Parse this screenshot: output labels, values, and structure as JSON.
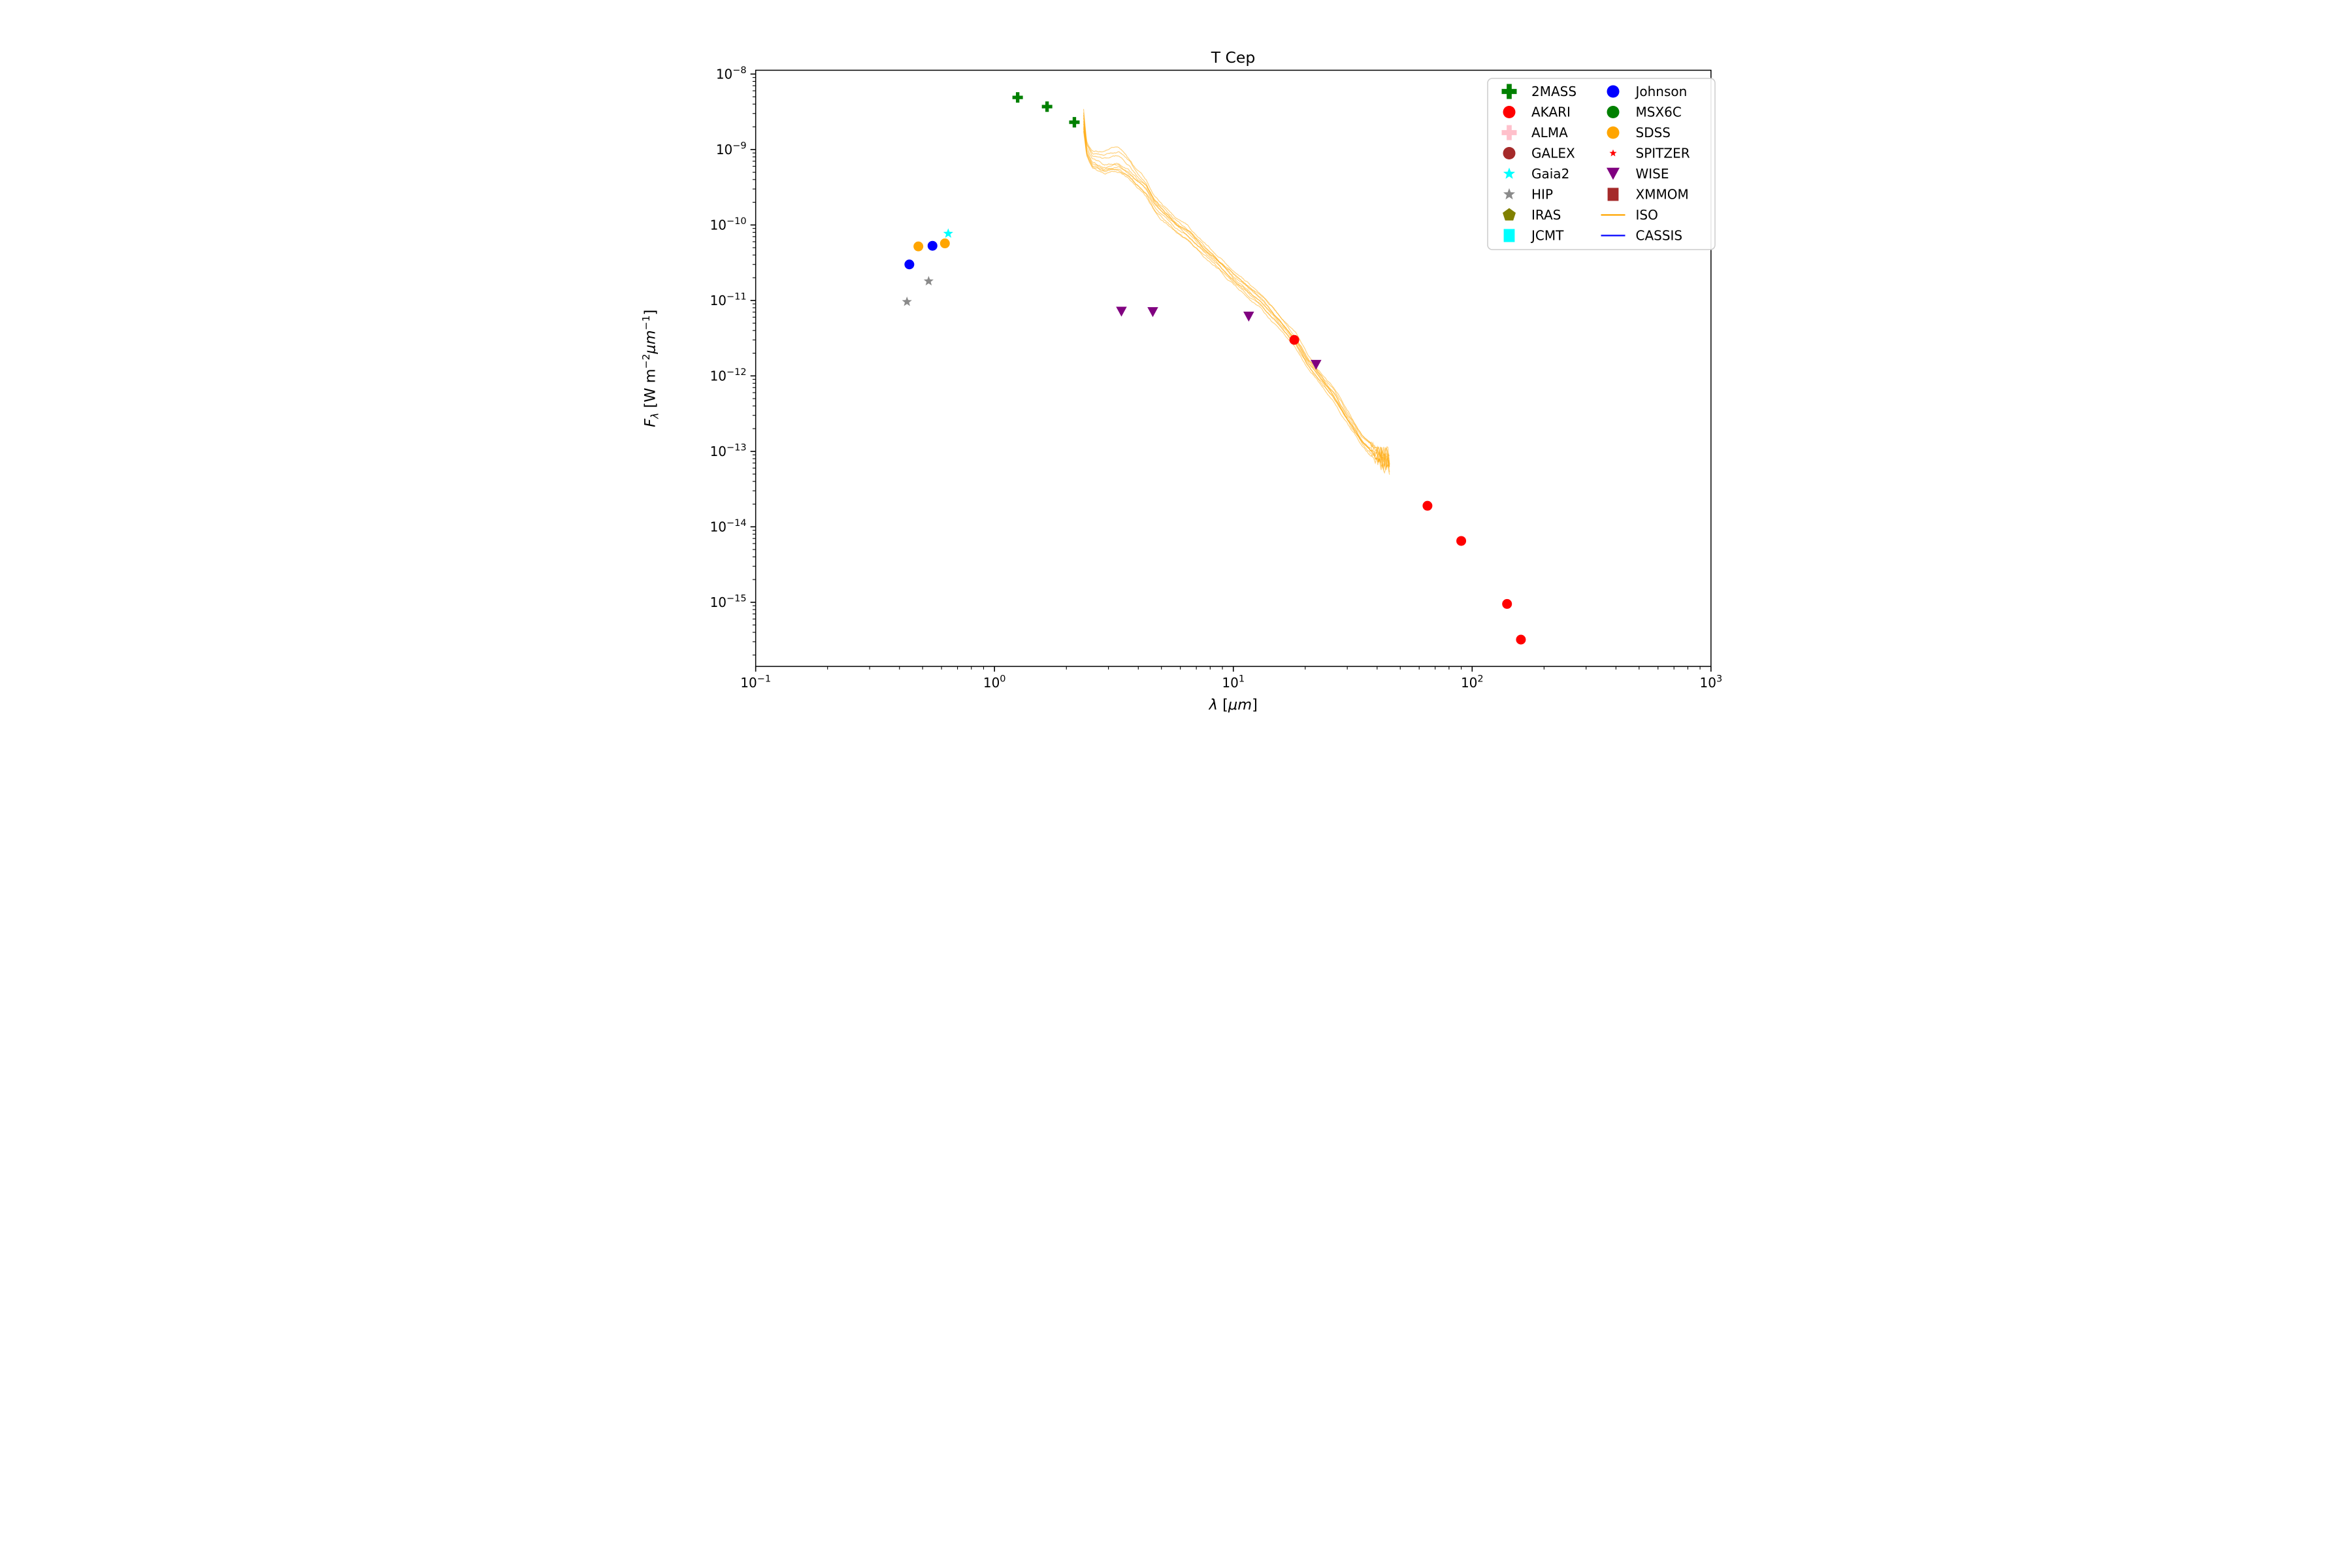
{
  "title": "T Cep",
  "axes": {
    "xlabel": {
      "symbol": "λ",
      "bracket_open": " [",
      "unit": "μm",
      "bracket_close": "]"
    },
    "ylabel": {
      "symbol": "F",
      "symbol_sub": "λ",
      "bracket_open": " [W m",
      "exp1": "−2",
      "unit2": "μm",
      "exp2": "−1",
      "bracket_close": "]"
    },
    "x_scale": "log",
    "y_scale": "log",
    "xlim": [
      0.1,
      1000
    ],
    "ylim": [
      1.4e-16,
      1.12e-08
    ],
    "xtick_exponents": [
      -1,
      0,
      1,
      2,
      3
    ],
    "ytick_exponents": [
      -8,
      -9,
      -10,
      -11,
      -12,
      -13,
      -14,
      -15
    ],
    "grid": false
  },
  "legend": {
    "position": "upper right",
    "columns": 2,
    "entries": [
      {
        "label": "2MASS",
        "marker": "plus",
        "color": "#008000",
        "small": false
      },
      {
        "label": "AKARI",
        "marker": "circle",
        "color": "#ff0000",
        "small": false
      },
      {
        "label": "ALMA",
        "marker": "plus",
        "color": "#ffc0cb",
        "small": false
      },
      {
        "label": "GALEX",
        "marker": "circle",
        "color": "#a52a2a",
        "small": false
      },
      {
        "label": "Gaia2",
        "marker": "star",
        "color": "#00ffff",
        "small": false
      },
      {
        "label": "HIP",
        "marker": "star",
        "color": "#8a8a8a",
        "small": false
      },
      {
        "label": "IRAS",
        "marker": "pentagon",
        "color": "#808000",
        "small": false
      },
      {
        "label": "JCMT",
        "marker": "square",
        "color": "#00ffff",
        "small": false
      },
      {
        "label": "Johnson",
        "marker": "circle",
        "color": "#0000ff",
        "small": false
      },
      {
        "label": "MSX6C",
        "marker": "circle",
        "color": "#008000",
        "small": false
      },
      {
        "label": "SDSS",
        "marker": "circle",
        "color": "#ffa500",
        "small": false
      },
      {
        "label": "SPITZER",
        "marker": "star",
        "color": "#ff0000",
        "small": true
      },
      {
        "label": "WISE",
        "marker": "triangle-down",
        "color": "#800080",
        "small": false
      },
      {
        "label": "XMMOM",
        "marker": "square",
        "color": "#a52a2a",
        "small": false
      },
      {
        "label": "ISO",
        "marker": "line",
        "color": "#ffa500",
        "small": false
      },
      {
        "label": "CASSIS",
        "marker": "line",
        "color": "#0000ff",
        "small": false
      }
    ]
  },
  "chart_data": {
    "type": "scatter",
    "title": "T Cep",
    "xlabel": "lambda [micrometer]",
    "ylabel": "F_lambda [W m^-2 micrometer^-1]",
    "x_units": "micrometer",
    "y_units": "W m^-2 um^-1",
    "series": [
      {
        "name": "2MASS",
        "marker": "plus",
        "color": "#008000",
        "points": [
          [
            1.25,
            4.9e-09
          ],
          [
            1.66,
            3.7e-09
          ],
          [
            2.16,
            2.3e-09
          ]
        ]
      },
      {
        "name": "AKARI",
        "marker": "circle",
        "color": "#ff0000",
        "points": [
          [
            18,
            3e-12
          ],
          [
            65,
            1.9e-14
          ],
          [
            90,
            6.5e-15
          ],
          [
            140,
            9.5e-16
          ],
          [
            160,
            3.2e-16
          ]
        ]
      },
      {
        "name": "ALMA",
        "marker": "plus",
        "color": "#ffc0cb",
        "points": []
      },
      {
        "name": "GALEX",
        "marker": "circle",
        "color": "#a52a2a",
        "points": []
      },
      {
        "name": "Gaia2",
        "marker": "star",
        "color": "#00ffff",
        "points": [
          [
            0.64,
            7.7e-11
          ]
        ]
      },
      {
        "name": "HIP",
        "marker": "star",
        "color": "#8a8a8a",
        "points": [
          [
            0.43,
            9.6e-12
          ],
          [
            0.53,
            1.8e-11
          ]
        ]
      },
      {
        "name": "IRAS",
        "marker": "pentagon",
        "color": "#808000",
        "points": []
      },
      {
        "name": "JCMT",
        "marker": "square",
        "color": "#00ffff",
        "points": []
      },
      {
        "name": "Johnson",
        "marker": "circle",
        "color": "#0000ff",
        "points": [
          [
            0.44,
            3e-11
          ],
          [
            0.55,
            5.3e-11
          ]
        ]
      },
      {
        "name": "MSX6C",
        "marker": "circle",
        "color": "#008000",
        "points": []
      },
      {
        "name": "SDSS",
        "marker": "circle",
        "color": "#ffa500",
        "points": [
          [
            0.48,
            5.2e-11
          ],
          [
            0.62,
            5.7e-11
          ]
        ]
      },
      {
        "name": "SPITZER",
        "marker": "star",
        "color": "#ff0000",
        "points": []
      },
      {
        "name": "WISE",
        "marker": "triangle-down",
        "color": "#800080",
        "points": [
          [
            3.4,
            7.1e-12
          ],
          [
            4.6,
            7e-12
          ],
          [
            11.6,
            6.1e-12
          ],
          [
            22.2,
            1.4e-12
          ]
        ]
      },
      {
        "name": "XMMOM",
        "marker": "square",
        "color": "#a52a2a",
        "points": []
      },
      {
        "name": "ISO",
        "marker": "line",
        "color": "#ffa500",
        "kind": "spectrum",
        "n_traces": 9,
        "opacity": 0.5,
        "points": [
          [
            2.36,
            1.5e-09
          ],
          [
            2.43,
            1e-09
          ],
          [
            2.57,
            6.9e-10
          ],
          [
            2.88,
            6e-10
          ],
          [
            3.31,
            6.3e-10
          ],
          [
            3.63,
            5.2e-10
          ],
          [
            3.98,
            3.8e-10
          ],
          [
            4.32,
            3e-10
          ],
          [
            4.68,
            1.9e-10
          ],
          [
            5.13,
            1.4e-10
          ],
          [
            5.75,
            1e-10
          ],
          [
            6.46,
            7.6e-11
          ],
          [
            7.5,
            4.7e-11
          ],
          [
            8.51,
            3.3e-11
          ],
          [
            10.0,
            2e-11
          ],
          [
            11.5,
            1.4e-11
          ],
          [
            13.2,
            9.5e-12
          ],
          [
            15.1,
            6e-12
          ],
          [
            18.2,
            3e-12
          ],
          [
            20.4,
            1.6e-12
          ],
          [
            22.9,
            1e-12
          ],
          [
            26.3,
            5.8e-13
          ],
          [
            30.2,
            2.8e-13
          ],
          [
            34.7,
            1.4e-13
          ],
          [
            39.8,
            8.9e-14
          ],
          [
            45.2,
            7.1e-14
          ]
        ]
      },
      {
        "name": "CASSIS",
        "marker": "line",
        "color": "#0000ff",
        "kind": "line",
        "points": []
      }
    ]
  },
  "style": {
    "background": "#ffffff",
    "spine_color": "#000000",
    "text_color": "#000000",
    "legend_border": "#cccccc",
    "iso_orange": "#ffa500",
    "cassis_blue": "#0000ff"
  }
}
